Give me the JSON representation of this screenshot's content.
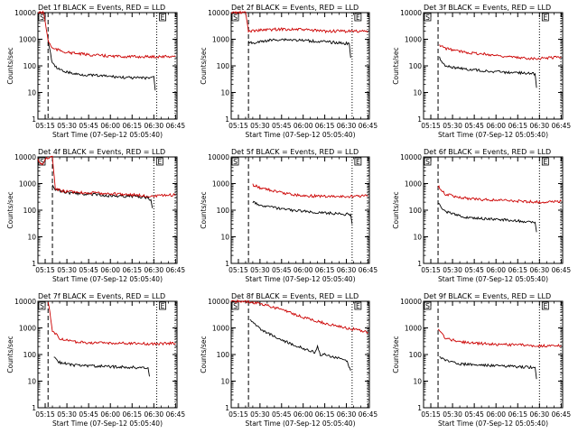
{
  "chart_data": [
    {
      "type": "line",
      "title": "Det 1f BLACK = Events, RED = LLD",
      "xlabel": "Start Time (07-Sep-12 05:05:40)",
      "ylabel": "Counts/sec",
      "y_scale": "log",
      "ylim": [
        1,
        10000
      ],
      "xlim": [
        "05:10",
        "06:46"
      ],
      "x_ticks": [
        "05:15",
        "05:30",
        "05:45",
        "06:00",
        "06:15",
        "06:30",
        "06:45"
      ],
      "y_ticks": [
        "1",
        "10",
        "100",
        "1000",
        "10000"
      ],
      "legend_symbol": "S",
      "legend_symbol_2": "E",
      "event_start": "05:17",
      "event_end": "06:32",
      "series": [
        {
          "name": "BLACK",
          "color": "#000000",
          "x": [
            "05:17",
            "05:20",
            "05:25",
            "05:35",
            "05:45",
            "06:00",
            "06:15",
            "06:26",
            "06:30",
            "06:31"
          ],
          "values": [
            900,
            120,
            70,
            50,
            45,
            40,
            35,
            35,
            40,
            12
          ]
        },
        {
          "name": "RED",
          "color": "#cc0000",
          "x": [
            "05:10",
            "05:14",
            "05:17",
            "05:20",
            "05:30",
            "05:45",
            "06:00",
            "06:15",
            "06:30",
            "06:45"
          ],
          "values": [
            10000,
            10000,
            900,
            450,
            320,
            260,
            230,
            220,
            220,
            230
          ]
        }
      ]
    },
    {
      "type": "line",
      "title": "Det 2f BLACK = Events, RED = LLD",
      "xlabel": "Start Time (07-Sep-12 05:05:40)",
      "ylabel": "Counts/sec",
      "y_scale": "log",
      "ylim": [
        1,
        10000
      ],
      "xlim": [
        "05:10",
        "06:46"
      ],
      "x_ticks": [
        "05:15",
        "05:30",
        "05:45",
        "06:00",
        "06:15",
        "06:30",
        "06:45"
      ],
      "y_ticks": [
        "1",
        "10",
        "100",
        "1000",
        "10000"
      ],
      "legend_symbol": "S",
      "legend_symbol_2": "E",
      "event_start": "05:22",
      "event_end": "06:34",
      "series": [
        {
          "name": "BLACK",
          "color": "#000000",
          "x": [
            "05:22",
            "05:25",
            "05:35",
            "05:45",
            "06:00",
            "06:15",
            "06:30",
            "06:32",
            "06:33"
          ],
          "values": [
            800,
            700,
            900,
            1000,
            900,
            800,
            700,
            700,
            200
          ]
        },
        {
          "name": "RED",
          "color": "#cc0000",
          "x": [
            "05:10",
            "05:15",
            "05:20",
            "05:22",
            "05:30",
            "05:45",
            "06:00",
            "06:15",
            "06:30",
            "06:45"
          ],
          "values": [
            10000,
            10000,
            10000,
            2000,
            2200,
            2400,
            2300,
            2000,
            2000,
            2000
          ]
        }
      ]
    },
    {
      "type": "line",
      "title": "Det 3f BLACK = Events, RED = LLD",
      "xlabel": "Start Time (07-Sep-12 05:05:40)",
      "ylabel": "Counts/sec",
      "y_scale": "log",
      "ylim": [
        1,
        10000
      ],
      "xlim": [
        "05:10",
        "06:46"
      ],
      "x_ticks": [
        "05:15",
        "05:30",
        "05:45",
        "06:00",
        "06:15",
        "06:30",
        "06:45"
      ],
      "y_ticks": [
        "1",
        "10",
        "100",
        "1000",
        "10000"
      ],
      "legend_symbol": "S",
      "legend_symbol_2": "E",
      "event_start": "05:20",
      "event_end": "06:30",
      "series": [
        {
          "name": "BLACK",
          "color": "#000000",
          "x": [
            "05:21",
            "05:25",
            "05:35",
            "05:45",
            "06:00",
            "06:15",
            "06:27",
            "06:28"
          ],
          "values": [
            200,
            100,
            80,
            70,
            60,
            55,
            50,
            15
          ]
        },
        {
          "name": "RED",
          "color": "#cc0000",
          "x": [
            "05:21",
            "05:25",
            "05:35",
            "05:45",
            "06:00",
            "06:15",
            "06:30",
            "06:45"
          ],
          "values": [
            600,
            450,
            350,
            300,
            250,
            200,
            190,
            220
          ]
        }
      ]
    },
    {
      "type": "line",
      "title": "Det 4f BLACK = Events, RED = LLD",
      "xlabel": "Start Time (07-Sep-12 05:05:40)",
      "ylabel": "Counts/sec",
      "y_scale": "log",
      "ylim": [
        1,
        10000
      ],
      "xlim": [
        "05:10",
        "06:46"
      ],
      "x_ticks": [
        "05:15",
        "05:30",
        "05:45",
        "06:00",
        "06:15",
        "06:30",
        "06:45"
      ],
      "y_ticks": [
        "1",
        "10",
        "100",
        "1000",
        "10000"
      ],
      "legend_symbol": "S",
      "legend_symbol_2": "E",
      "event_start": "05:20",
      "event_end": "06:30",
      "series": [
        {
          "name": "BLACK",
          "color": "#000000",
          "x": [
            "05:20",
            "05:22",
            "05:30",
            "05:45",
            "06:00",
            "06:15",
            "06:25",
            "06:28",
            "06:29"
          ],
          "values": [
            1000,
            600,
            450,
            400,
            350,
            330,
            300,
            250,
            120
          ]
        },
        {
          "name": "RED",
          "color": "#cc0000",
          "x": [
            "05:10",
            "05:13",
            "05:16",
            "05:20",
            "05:22",
            "05:30",
            "05:45",
            "06:00",
            "06:15",
            "06:30",
            "06:45"
          ],
          "values": [
            8000,
            5000,
            9000,
            10000,
            600,
            500,
            450,
            420,
            380,
            330,
            380
          ]
        }
      ]
    },
    {
      "type": "line",
      "title": "Det 5f BLACK = Events, RED = LLD",
      "xlabel": "Start Time (07-Sep-12 05:05:40)",
      "ylabel": "Counts/sec",
      "y_scale": "log",
      "ylim": [
        1,
        10000
      ],
      "xlim": [
        "05:10",
        "06:46"
      ],
      "x_ticks": [
        "05:15",
        "05:30",
        "05:45",
        "06:00",
        "06:15",
        "06:30",
        "06:45"
      ],
      "y_ticks": [
        "1",
        "10",
        "100",
        "1000",
        "10000"
      ],
      "legend_symbol": "S",
      "legend_symbol_2": "E",
      "event_start": "05:22",
      "event_end": "06:34",
      "series": [
        {
          "name": "BLACK",
          "color": "#000000",
          "x": [
            "05:25",
            "05:30",
            "05:45",
            "06:00",
            "06:15",
            "06:30",
            "06:33",
            "06:34"
          ],
          "values": [
            200,
            150,
            110,
            90,
            80,
            70,
            70,
            30
          ]
        },
        {
          "name": "RED",
          "color": "#cc0000",
          "x": [
            "05:25",
            "05:30",
            "05:45",
            "06:00",
            "06:15",
            "06:30",
            "06:45"
          ],
          "values": [
            900,
            700,
            450,
            350,
            330,
            320,
            350
          ]
        }
      ]
    },
    {
      "type": "line",
      "title": "Det 6f BLACK = Events, RED = LLD",
      "xlabel": "Start Time (07-Sep-12 05:05:40)",
      "ylabel": "Counts/sec",
      "y_scale": "log",
      "ylim": [
        1,
        10000
      ],
      "xlim": [
        "05:10",
        "06:46"
      ],
      "x_ticks": [
        "05:15",
        "05:30",
        "05:45",
        "06:00",
        "06:15",
        "06:30",
        "06:45"
      ],
      "y_ticks": [
        "1",
        "10",
        "100",
        "1000",
        "10000"
      ],
      "legend_symbol": "S",
      "legend_symbol_2": "E",
      "event_start": "05:20",
      "event_end": "06:30",
      "series": [
        {
          "name": "BLACK",
          "color": "#000000",
          "x": [
            "05:20",
            "05:25",
            "05:35",
            "05:45",
            "06:00",
            "06:15",
            "06:27",
            "06:28"
          ],
          "values": [
            180,
            90,
            60,
            50,
            45,
            40,
            35,
            15
          ]
        },
        {
          "name": "RED",
          "color": "#cc0000",
          "x": [
            "05:20",
            "05:25",
            "05:35",
            "05:45",
            "06:00",
            "06:15",
            "06:30",
            "06:45"
          ],
          "values": [
            800,
            400,
            300,
            260,
            240,
            220,
            200,
            220
          ]
        }
      ]
    },
    {
      "type": "line",
      "title": "Det 7f BLACK = Events, RED = LLD",
      "xlabel": "Start Time (07-Sep-12 05:05:40)",
      "ylabel": "Counts/sec",
      "y_scale": "log",
      "ylim": [
        1,
        10000
      ],
      "xlim": [
        "05:10",
        "06:46"
      ],
      "x_ticks": [
        "05:15",
        "05:30",
        "05:45",
        "06:00",
        "06:15",
        "06:30",
        "06:45"
      ],
      "y_ticks": [
        "1",
        "10",
        "100",
        "1000",
        "10000"
      ],
      "legend_symbol": "S",
      "legend_symbol_2": "E",
      "event_start": "05:17",
      "event_end": "06:32",
      "series": [
        {
          "name": "BLACK",
          "color": "#000000",
          "x": [
            "05:21",
            "05:25",
            "05:35",
            "05:45",
            "06:00",
            "06:15",
            "06:26",
            "06:27"
          ],
          "values": [
            80,
            50,
            40,
            38,
            35,
            33,
            32,
            15
          ]
        },
        {
          "name": "RED",
          "color": "#cc0000",
          "x": [
            "05:17",
            "05:20",
            "05:25",
            "05:35",
            "05:45",
            "06:00",
            "06:15",
            "06:30",
            "06:45"
          ],
          "values": [
            10000,
            800,
            400,
            300,
            280,
            270,
            260,
            250,
            270
          ]
        }
      ]
    },
    {
      "type": "line",
      "title": "Det 8f BLACK = Events, RED = LLD",
      "xlabel": "Start Time (07-Sep-12 05:05:40)",
      "ylabel": "Counts/sec",
      "y_scale": "log",
      "ylim": [
        1,
        10000
      ],
      "xlim": [
        "05:10",
        "06:46"
      ],
      "x_ticks": [
        "05:15",
        "05:30",
        "05:45",
        "06:00",
        "06:15",
        "06:30",
        "06:45"
      ],
      "y_ticks": [
        "1",
        "10",
        "100",
        "1000",
        "10000"
      ],
      "legend_symbol": "S",
      "legend_symbol_2": "E",
      "event_start": "05:22",
      "event_end": "06:34",
      "series": [
        {
          "name": "BLACK",
          "color": "#000000",
          "x": [
            "05:23",
            "05:30",
            "05:45",
            "06:00",
            "06:08",
            "06:10",
            "06:12",
            "06:15",
            "06:30",
            "06:33"
          ],
          "values": [
            2000,
            900,
            350,
            170,
            120,
            200,
            100,
            100,
            60,
            25
          ]
        },
        {
          "name": "RED",
          "color": "#cc0000",
          "x": [
            "05:10",
            "05:20",
            "05:30",
            "05:45",
            "06:00",
            "06:15",
            "06:30",
            "06:45"
          ],
          "values": [
            10000,
            10000,
            8000,
            5000,
            2500,
            1500,
            1000,
            700
          ]
        }
      ]
    },
    {
      "type": "line",
      "title": "Det 9f BLACK = Events, RED = LLD",
      "xlabel": "Start Time (07-Sep-12 05:05:40)",
      "ylabel": "Counts/sec",
      "y_scale": "log",
      "ylim": [
        1,
        10000
      ],
      "xlim": [
        "05:10",
        "06:46"
      ],
      "x_ticks": [
        "05:15",
        "05:30",
        "05:45",
        "06:00",
        "06:15",
        "06:30",
        "06:45"
      ],
      "y_ticks": [
        "1",
        "10",
        "100",
        "1000",
        "10000"
      ],
      "legend_symbol": "S",
      "legend_symbol_2": "E",
      "event_start": "05:20",
      "event_end": "06:30",
      "series": [
        {
          "name": "BLACK",
          "color": "#000000",
          "x": [
            "05:21",
            "05:25",
            "05:35",
            "05:45",
            "06:00",
            "06:15",
            "06:27",
            "06:28"
          ],
          "values": [
            80,
            60,
            45,
            40,
            38,
            35,
            33,
            12
          ]
        },
        {
          "name": "RED",
          "color": "#cc0000",
          "x": [
            "05:20",
            "05:25",
            "05:35",
            "05:45",
            "06:00",
            "06:15",
            "06:30",
            "06:45"
          ],
          "values": [
            900,
            400,
            300,
            270,
            240,
            230,
            210,
            220
          ]
        }
      ]
    }
  ]
}
